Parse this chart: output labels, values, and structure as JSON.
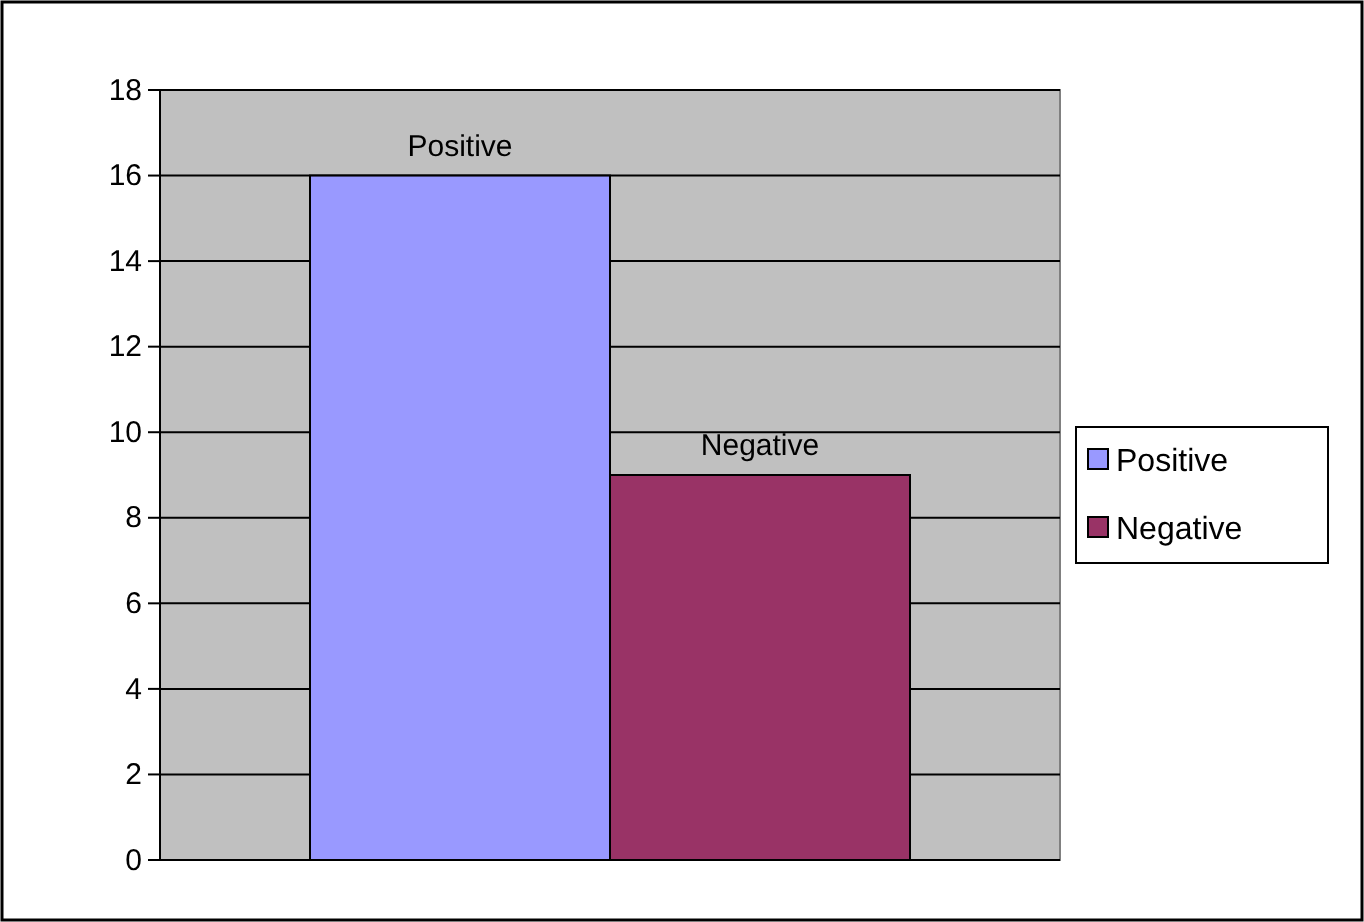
{
  "chart_data": {
    "type": "bar",
    "categories": [
      null
    ],
    "series": [
      {
        "name": "Positive",
        "color": "#9999ff",
        "values": [
          16
        ]
      },
      {
        "name": "Negative",
        "color": "#993366",
        "values": [
          9
        ]
      }
    ],
    "ylim": [
      0,
      18
    ],
    "yticks": [
      0,
      2,
      4,
      6,
      8,
      10,
      12,
      14,
      16,
      18
    ],
    "grid": "y",
    "legend": "right",
    "annotations": [
      {
        "text": "Positive",
        "y": 16
      },
      {
        "text": "Negative",
        "y": 9
      }
    ]
  }
}
